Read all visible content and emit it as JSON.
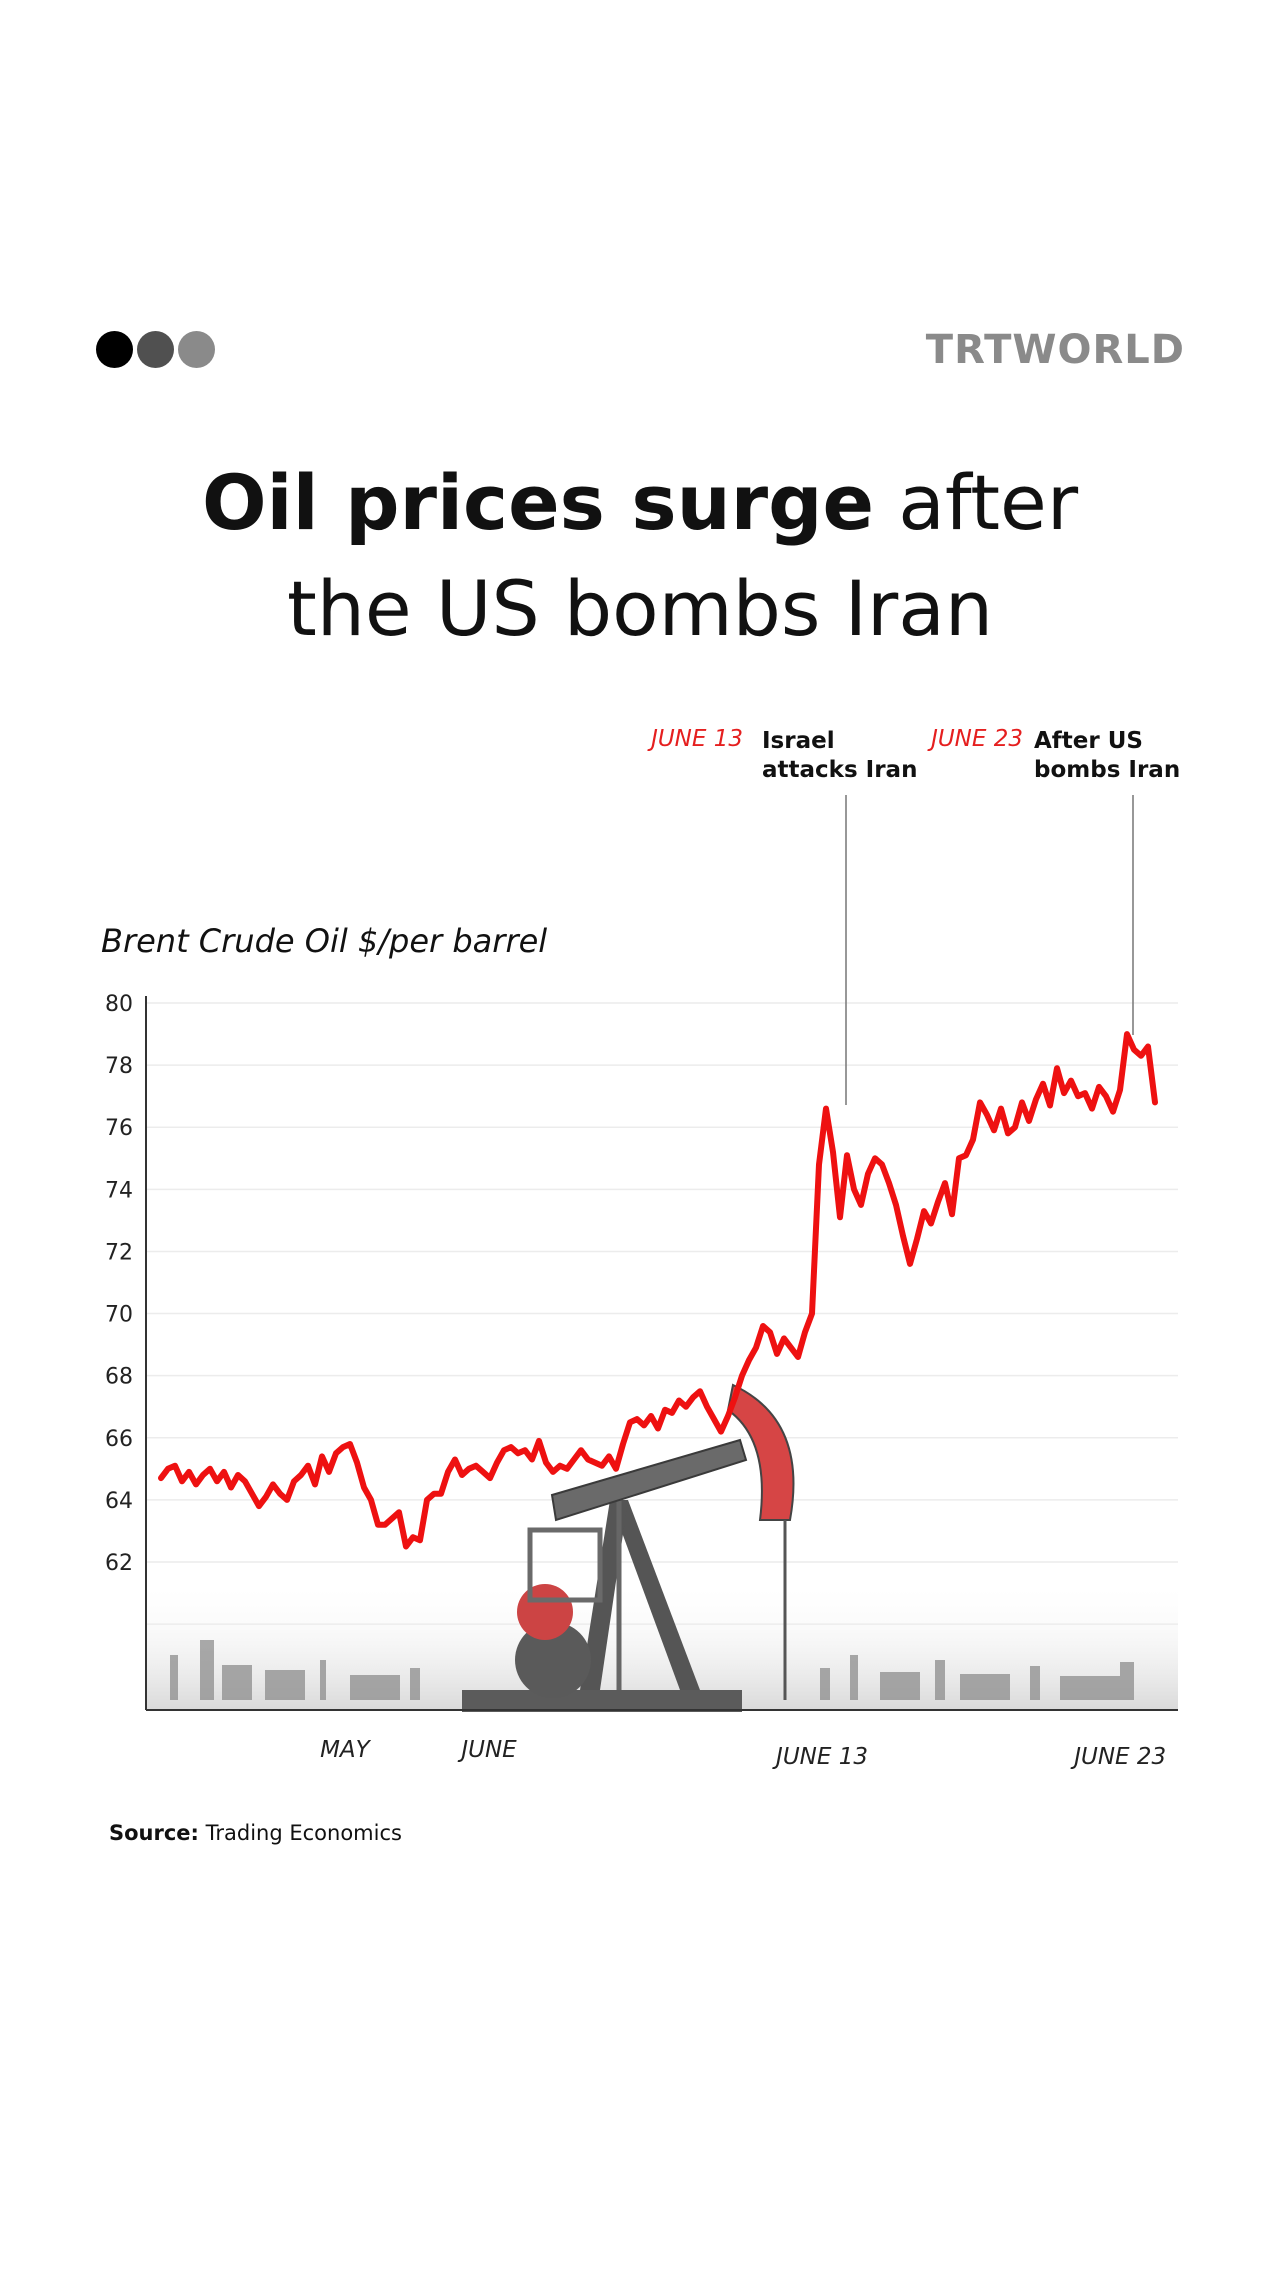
{
  "header": {
    "dots": [
      "#000000",
      "#505050",
      "#8a8a8a"
    ],
    "logo": "TRTWORLD"
  },
  "title": {
    "bold": "Oil prices surge",
    "rest_line1": " after",
    "line2": "the US bombs Iran"
  },
  "annotations": [
    {
      "date": "JUNE 13",
      "line1": "Israel",
      "line2": "attacks Iran"
    },
    {
      "date": "JUNE 23",
      "line1": "After US",
      "line2": "bombs Iran"
    }
  ],
  "source": {
    "label": "Source:",
    "text": "Trading Economics"
  },
  "colors": {
    "line": "#ee1111",
    "accent": "#e51f1f",
    "grid": "#ececec",
    "axis": "#333333"
  },
  "chart_data": {
    "type": "line",
    "title": "Brent Crude Oil $/per barrel",
    "ylim": [
      57,
      80
    ],
    "yticks": [
      62,
      64,
      66,
      68,
      70,
      72,
      74,
      76,
      78,
      80
    ],
    "xlim": [
      0,
      200
    ],
    "x_tick_labels": [
      {
        "label": "MAY",
        "x": 37
      },
      {
        "label": "JUNE",
        "x": 66
      },
      {
        "label": "JUNE 13",
        "x": 133
      },
      {
        "label": "JUNE 23",
        "x": 193
      }
    ],
    "grid": true,
    "series": [
      {
        "values": [
          64.7,
          65,
          65.1,
          64.6,
          64.9,
          64.5,
          64.8,
          65,
          64.6,
          64.9,
          64.4,
          64.8,
          64.6,
          64.2,
          63.8,
          64.1,
          64.5,
          64.2,
          64.0,
          64.6,
          64.8,
          65.1,
          64.5,
          65.4,
          64.9,
          65.5,
          65.7,
          65.8,
          65.2,
          64.4,
          64.0,
          63.2,
          63.2,
          63.4,
          63.6,
          62.5,
          62.8,
          62.7,
          64.0,
          64.2,
          64.2,
          64.9,
          65.3,
          64.8,
          65.0,
          65.1,
          64.9,
          64.7,
          65.2,
          65.6,
          65.7,
          65.5,
          65.6,
          65.3,
          65.9,
          65.2,
          64.9,
          65.1,
          65.0,
          65.3,
          65.6,
          65.3,
          65.2,
          65.1,
          65.4,
          65.0,
          65.8,
          66.5,
          66.6,
          66.4,
          66.7,
          66.3,
          66.9,
          66.8,
          67.2,
          67.0,
          67.3,
          67.5,
          67.0,
          66.6,
          66.2,
          66.7,
          67.3,
          68.0,
          68.5,
          68.9,
          69.6,
          69.4,
          68.7,
          69.2,
          68.9,
          68.6,
          69.4,
          70.0,
          74.8,
          76.6,
          75.2,
          73.1,
          75.1,
          74.0,
          73.5,
          74.5,
          75.0,
          74.8,
          74.2,
          73.5,
          72.5,
          71.6,
          72.4,
          73.3,
          72.9,
          73.6,
          74.2,
          73.2,
          75.0,
          75.1,
          75.6,
          76.8,
          76.4,
          75.9,
          76.6,
          75.8,
          76.0,
          76.8,
          76.2,
          76.9,
          77.4,
          76.7,
          77.9,
          77.1,
          77.5,
          77.0,
          77.1,
          76.6,
          77.3,
          77.0,
          76.5,
          77.2,
          79.0,
          78.5,
          78.3,
          78.6,
          76.8
        ],
        "x_start": 0,
        "x_end": 200
      }
    ]
  }
}
